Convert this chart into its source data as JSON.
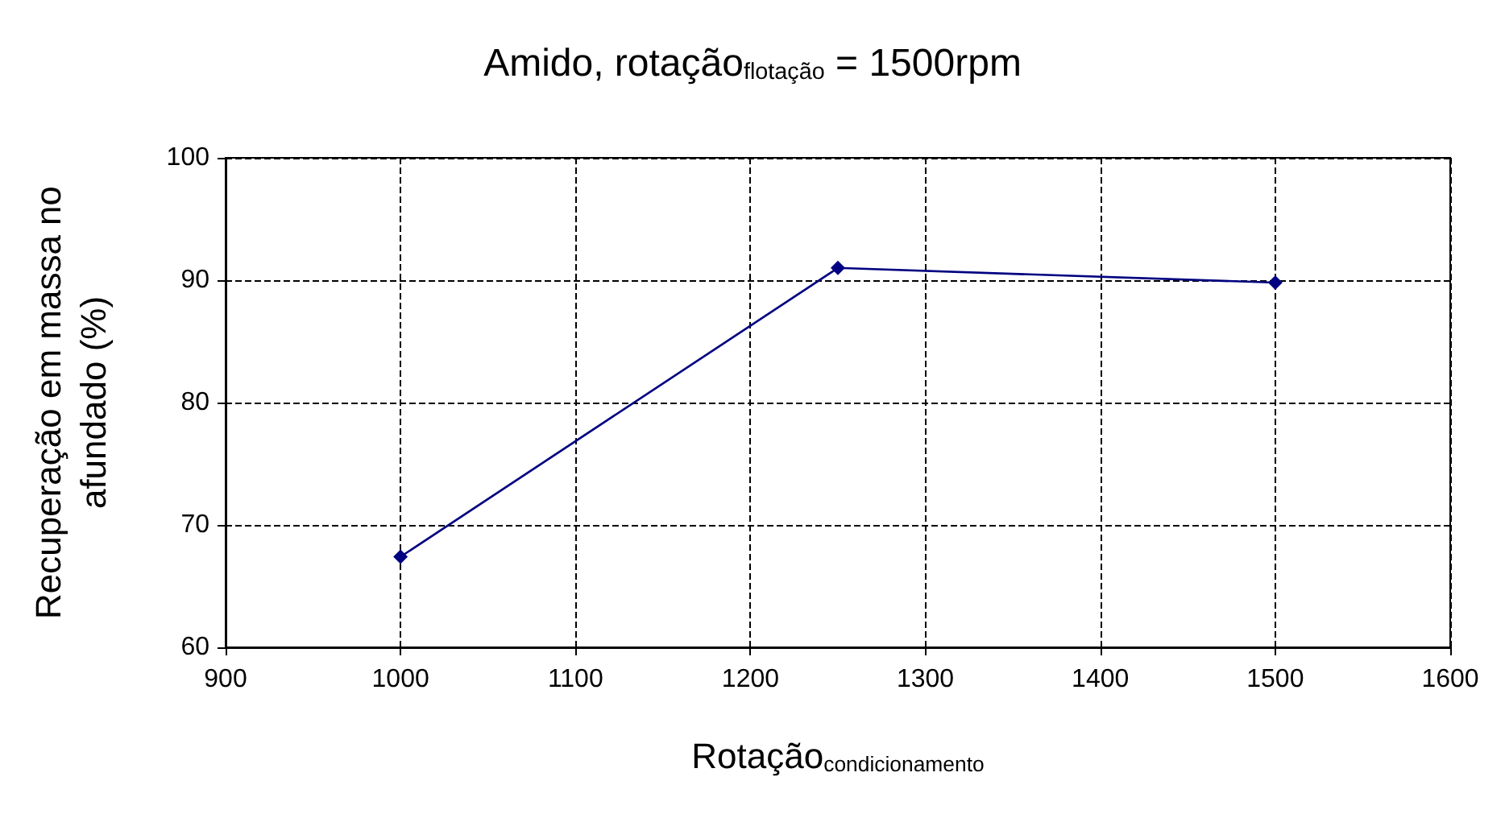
{
  "chart_data": {
    "type": "line",
    "title": "Amido, rotação$_{flotação}$ = 1500rpm",
    "xlabel": "Rotação$_{condicionamento}$",
    "ylabel": "Recuperação em massa no afundado (%)",
    "x": [
      1000,
      1250,
      1500
    ],
    "series": [
      {
        "color": "#000080",
        "values": [
          67.4,
          91.0,
          89.8
        ]
      }
    ],
    "xlim": [
      900,
      1600
    ],
    "xticks": [
      900,
      1000,
      1100,
      1200,
      1300,
      1400,
      1500,
      1600
    ],
    "ylim": [
      60,
      100
    ],
    "yticks": [
      60,
      70,
      80,
      90,
      100
    ],
    "grid": true,
    "marker": "diamond",
    "line_style": "solid"
  }
}
